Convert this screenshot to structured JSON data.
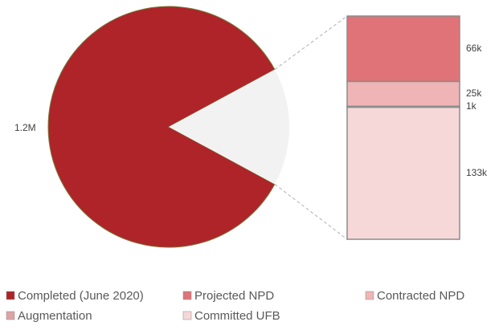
{
  "chart_data": {
    "type": "pie-of-bar",
    "categories": [
      "Completed (June 2020)",
      "Projected NPD",
      "Contracted NPD",
      "Augmentation",
      "Committed UFB"
    ],
    "values": [
      1200000,
      66000,
      25000,
      1000,
      133000
    ],
    "value_labels": [
      "1.2M",
      "66k",
      "25k",
      "1k",
      "133k"
    ],
    "colors": [
      "#ae2429",
      "#e07377",
      "#efb5b6",
      "#dca4a6",
      "#f7d8d9"
    ],
    "other_color": "#f2f2f2"
  }
}
